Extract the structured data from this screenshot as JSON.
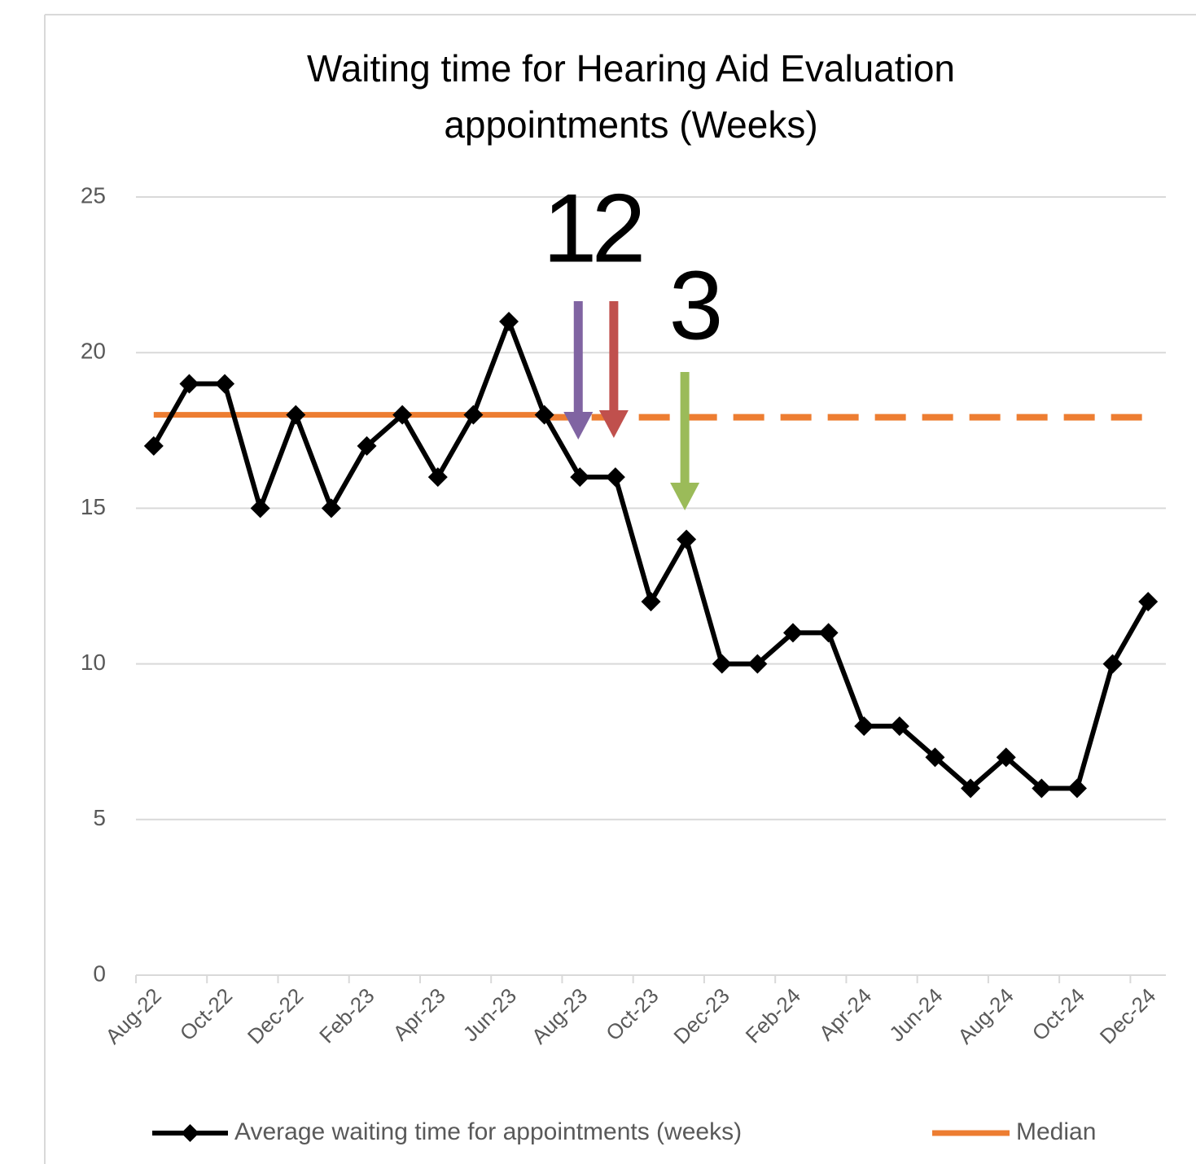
{
  "chart_data": {
    "type": "line",
    "title": [
      "Waiting time for Hearing Aid Evaluation",
      "appointments (Weeks)"
    ],
    "categories": [
      "Aug-22",
      null,
      "Oct-22",
      null,
      "Dec-22",
      null,
      "Feb-23",
      null,
      "Apr-23",
      null,
      "Jun-23",
      null,
      "Aug-23",
      null,
      "Oct-23",
      null,
      "Dec-23",
      null,
      "Feb-24",
      null,
      "Apr-24",
      null,
      "Jun-24",
      null,
      "Aug-24",
      null,
      "Oct-24",
      null,
      "Dec-24"
    ],
    "series": [
      {
        "name": "Average waiting time for appointments (weeks)",
        "color": "#000000",
        "marker": "diamond",
        "values": [
          17,
          19,
          19,
          15,
          18,
          15,
          17,
          18,
          16,
          18,
          21,
          18,
          16,
          16,
          12,
          14,
          10,
          10,
          11,
          11,
          8,
          8,
          7,
          6,
          7,
          6,
          6,
          10,
          12
        ]
      },
      {
        "name": "Median",
        "color": "#ed7d31",
        "dash_start_index": 11,
        "values": [
          18,
          18,
          18,
          18,
          18,
          18,
          18,
          18,
          18,
          18,
          18,
          18,
          18,
          18,
          18,
          18,
          18,
          18,
          18,
          18,
          18,
          18,
          18,
          18,
          18,
          18,
          18,
          18,
          18
        ]
      }
    ],
    "annotations": [
      {
        "text": "1",
        "color": "#8064a2",
        "category_index": 12
      },
      {
        "text": "2",
        "color": "#c0504d",
        "category_index": 13
      },
      {
        "text": "3",
        "color": "#9bbb59",
        "category_index": 15
      }
    ],
    "ylim": [
      0,
      25
    ],
    "yticks": [
      0,
      5,
      10,
      15,
      20,
      25
    ],
    "grid": true,
    "legend": "bottom"
  }
}
